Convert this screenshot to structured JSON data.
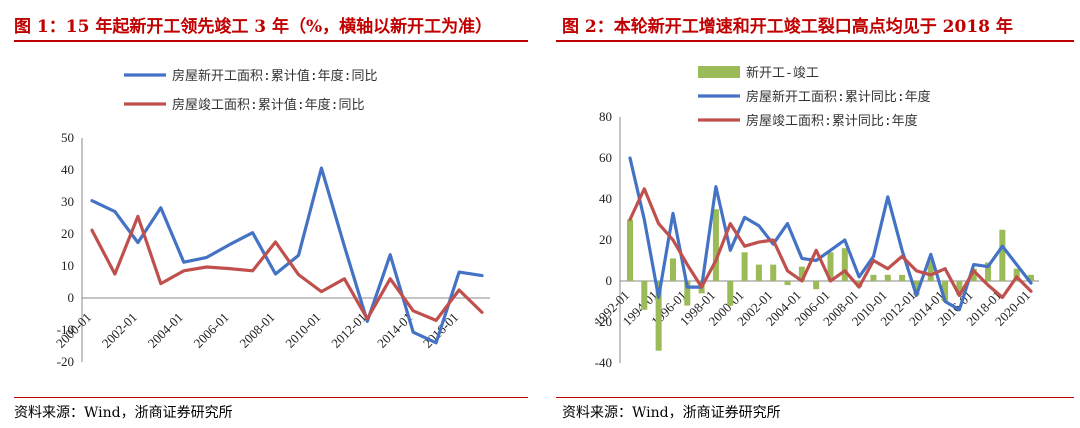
{
  "left": {
    "title": "图 1：15 年起新开工领先竣工 3 年（%，横轴以新开工为准）",
    "source": "资料来源：Wind，浙商证券研究所"
  },
  "right": {
    "title": "图 2：本轮新开工增速和开工竣工裂口高点均见于 2018 年",
    "source": "资料来源：Wind，浙商证券研究所"
  },
  "colors": {
    "title": "#c00000",
    "blue": "#4472c4",
    "red": "#c0504d",
    "green": "#9bbb59"
  },
  "chart_data": [
    {
      "type": "line",
      "legend_placement": "top",
      "grid": false,
      "ylim": [
        -20,
        50
      ],
      "yticks": [
        -20,
        -10,
        0,
        10,
        20,
        30,
        40,
        50
      ],
      "xtick_labels": [
        "2000-01",
        "2002-01",
        "2004-01",
        "2006-01",
        "2008-01",
        "2010-01",
        "2012-01",
        "2014-01",
        "2016-01"
      ],
      "x": [
        2000,
        2001,
        2002,
        2003,
        2004,
        2005,
        2006,
        2007,
        2008,
        2009,
        2010,
        2011,
        2012,
        2013,
        2014,
        2015,
        2016,
        2017
      ],
      "series": [
        {
          "name": "房屋新开工面积:累计值:年度:同比",
          "color": "#4472c4",
          "values": [
            30.4,
            27,
            17.3,
            28.2,
            11.2,
            12.7,
            16.7,
            20.4,
            7.5,
            13.3,
            40.6,
            16.2,
            -7.3,
            13.5,
            -10.7,
            -14,
            8.1,
            7
          ]
        },
        {
          "name": "房屋竣工面积:累计值:年度:同比",
          "color": "#c0504d",
          "values": [
            21.2,
            7.5,
            25.5,
            4.5,
            8.5,
            9.7,
            9.2,
            8.5,
            17.5,
            7.3,
            2,
            6,
            -6.5,
            6,
            -4,
            -7,
            2.5,
            -4.5
          ]
        }
      ]
    },
    {
      "type": "bar+line",
      "legend_placement": "top",
      "grid": false,
      "ylim": [
        -40,
        80
      ],
      "yticks": [
        -40,
        -20,
        0,
        20,
        40,
        60,
        80
      ],
      "xtick_labels": [
        "1992-01",
        "1994-01",
        "1996-01",
        "1998-01",
        "2000-01",
        "2002-01",
        "2004-01",
        "2006-01",
        "2008-01",
        "2010-01",
        "2012-01",
        "2014-01",
        "2016-01",
        "2018-01",
        "2020-01"
      ],
      "x": [
        1992,
        1993,
        1994,
        1995,
        1996,
        1997,
        1998,
        1999,
        2000,
        2001,
        2002,
        2003,
        2004,
        2005,
        2006,
        2007,
        2008,
        2009,
        2010,
        2011,
        2012,
        2013,
        2014,
        2015,
        2016,
        2017,
        2018,
        2019,
        2020
      ],
      "series": [
        {
          "name": "新开工-竣工",
          "kind": "bar",
          "color": "#9bbb59",
          "values": [
            30,
            -14,
            -34,
            11,
            -12,
            -6,
            35,
            -12,
            14,
            8,
            8,
            -2,
            7,
            -4,
            14,
            16,
            -3,
            3,
            3,
            3,
            -7,
            10,
            -10,
            -7,
            6,
            9,
            25,
            6,
            3
          ]
        },
        {
          "name": "房屋新开工面积:累计同比:年度",
          "kind": "line",
          "color": "#4472c4",
          "values": [
            60,
            30,
            -8,
            33,
            -3,
            -3,
            46,
            15,
            31,
            27,
            18,
            28,
            11,
            10,
            15,
            20,
            2,
            12,
            41,
            15,
            -7,
            13,
            -10,
            -14,
            8,
            7,
            17,
            8,
            -1
          ]
        },
        {
          "name": "房屋竣工面积:累计同比:年度",
          "kind": "line",
          "color": "#c0504d",
          "values": [
            30,
            45,
            28,
            20,
            8,
            -3,
            10,
            28,
            17,
            19,
            20,
            5,
            0,
            15,
            0,
            5,
            -3,
            10,
            6,
            12,
            5,
            3,
            6,
            -7,
            5,
            -2,
            -8,
            2,
            -5
          ]
        }
      ]
    }
  ]
}
